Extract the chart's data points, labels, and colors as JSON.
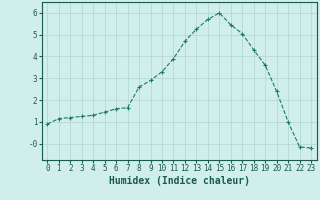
{
  "x": [
    0,
    1,
    2,
    3,
    4,
    5,
    6,
    7,
    8,
    9,
    10,
    11,
    12,
    13,
    14,
    15,
    16,
    17,
    18,
    19,
    20,
    21,
    22,
    23
  ],
  "y": [
    0.9,
    1.15,
    1.2,
    1.25,
    1.3,
    1.45,
    1.6,
    1.65,
    2.6,
    2.9,
    3.3,
    3.9,
    4.7,
    5.25,
    5.7,
    6.0,
    5.45,
    5.05,
    4.3,
    3.6,
    2.4,
    1.0,
    -0.15,
    -0.2
  ],
  "line_color": "#1a7a6e",
  "marker": "+",
  "marker_size": 3,
  "bg_color": "#d0eeea",
  "grid_color": "#b8d8d4",
  "xlabel": "Humidex (Indice chaleur)",
  "xlim": [
    -0.5,
    23.5
  ],
  "ylim": [
    -0.75,
    6.5
  ],
  "yticks": [
    0,
    1,
    2,
    3,
    4,
    5,
    6
  ],
  "ytick_labels": [
    "-0",
    "1",
    "2",
    "3",
    "4",
    "5",
    "6"
  ],
  "xticks": [
    0,
    1,
    2,
    3,
    4,
    5,
    6,
    7,
    8,
    9,
    10,
    11,
    12,
    13,
    14,
    15,
    16,
    17,
    18,
    19,
    20,
    21,
    22,
    23
  ],
  "tick_color": "#1a5a50",
  "axis_color": "#1a5a50",
  "xlabel_fontsize": 7,
  "tick_fontsize": 5.5,
  "linewidth": 0.8,
  "marker_edge_width": 0.8
}
